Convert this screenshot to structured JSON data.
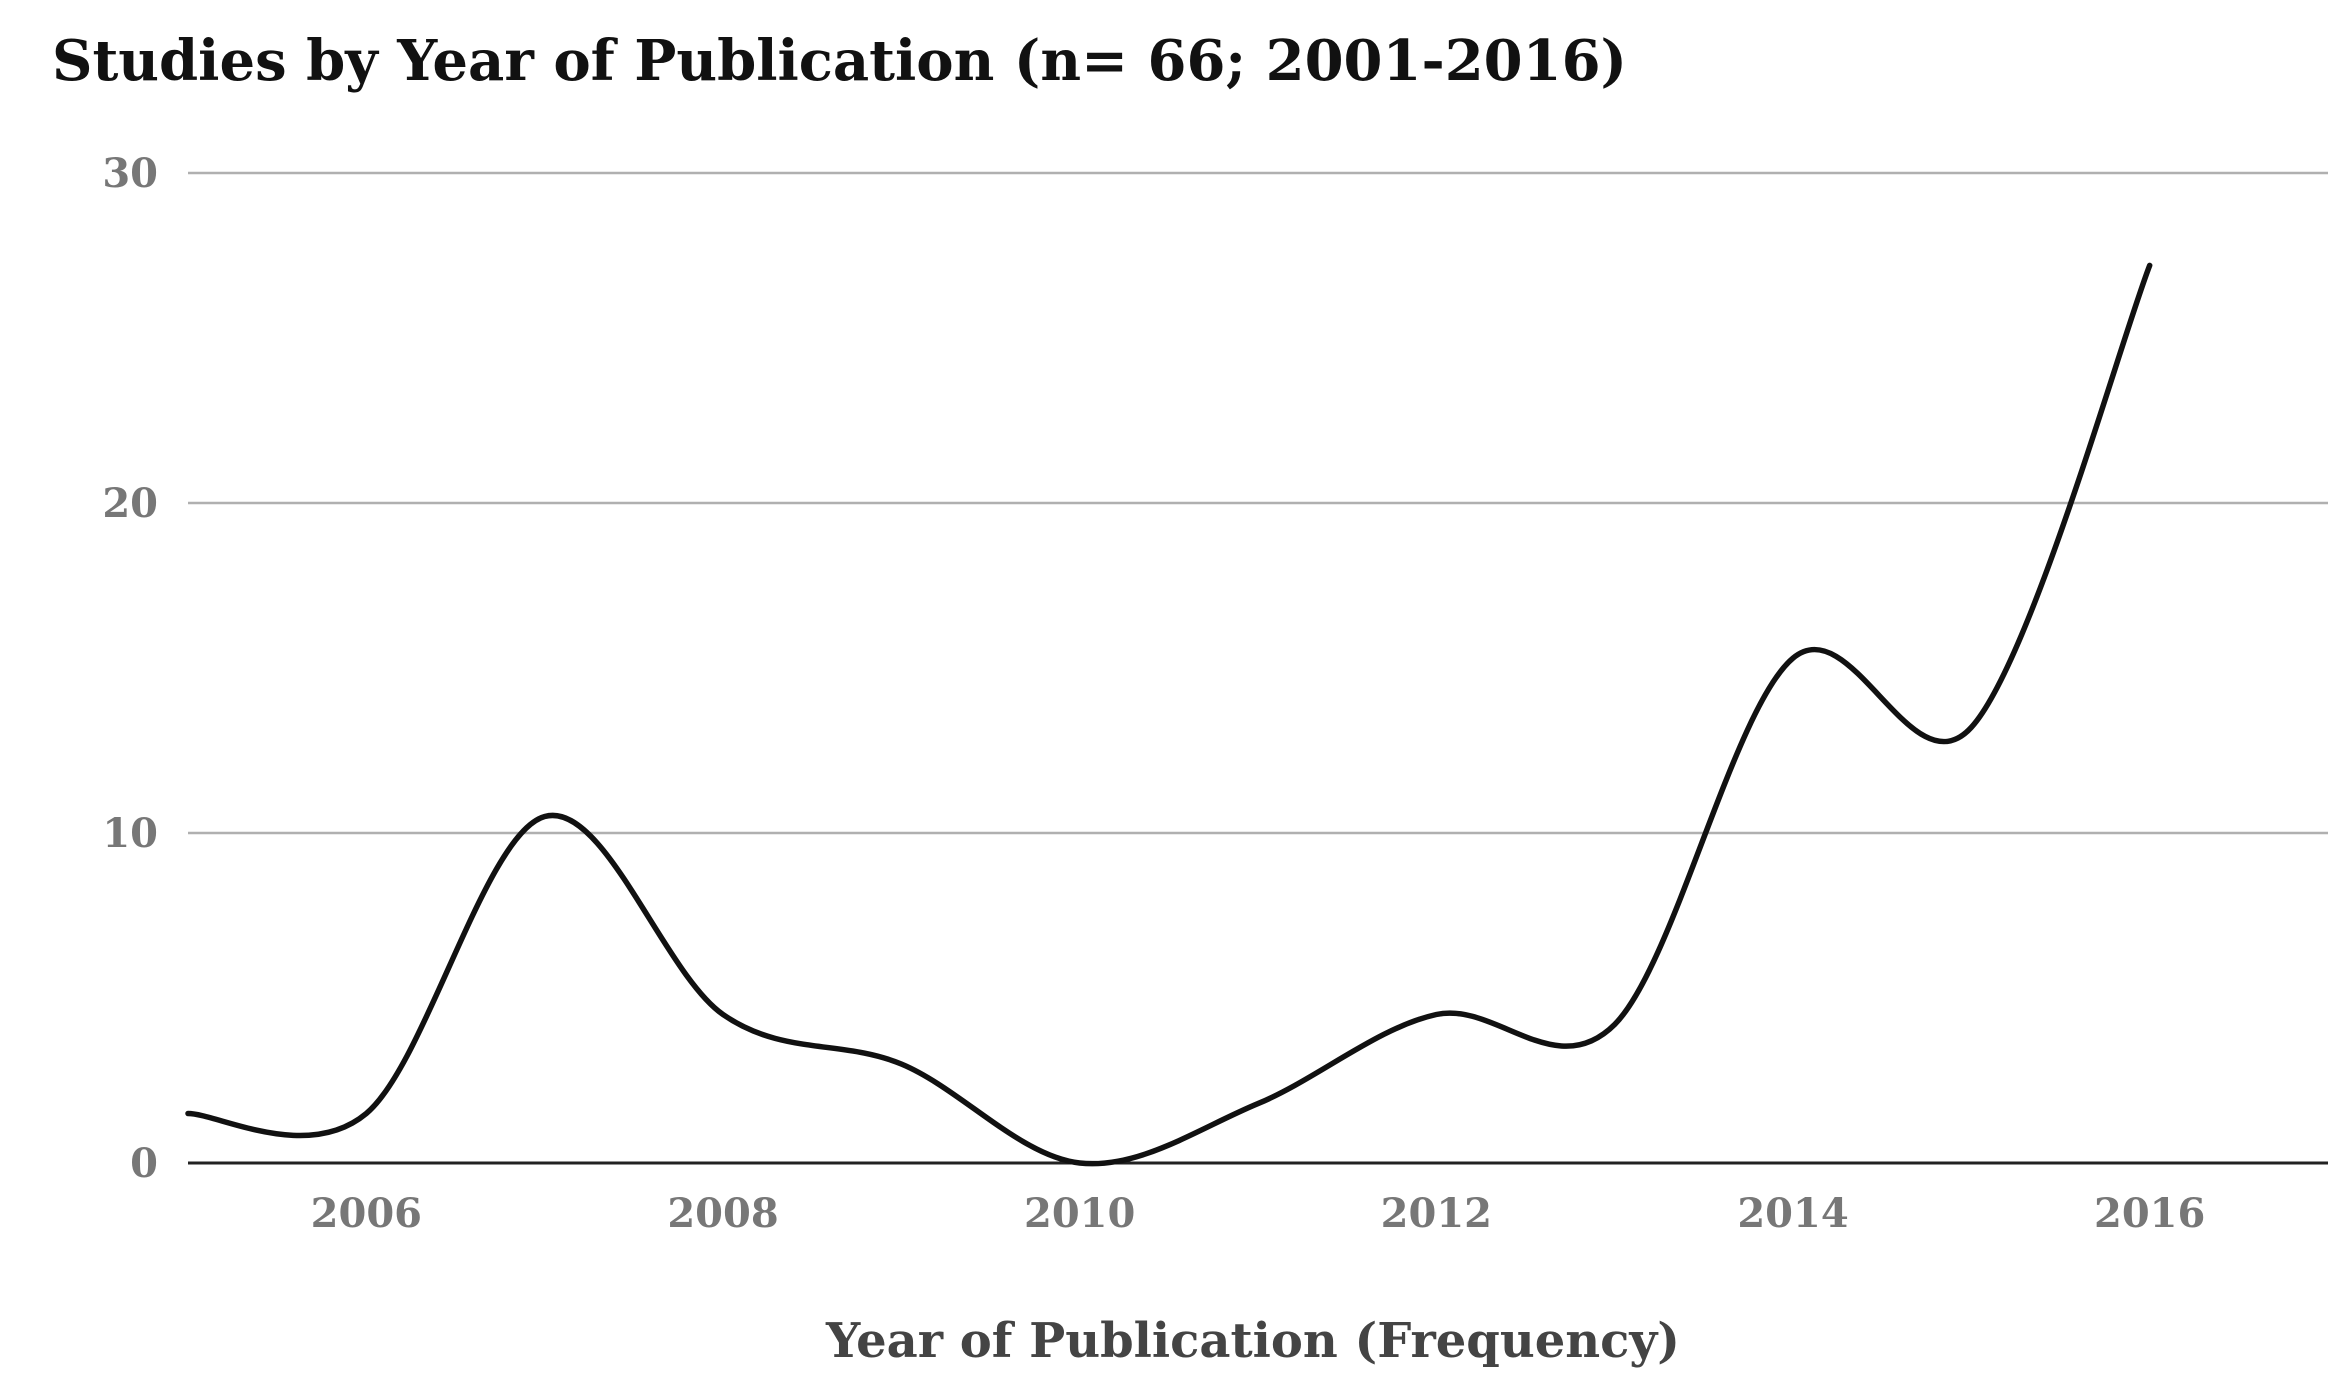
{
  "chart_data": {
    "type": "line",
    "title": "Studies by Year of Publication (n= 66; 2001-2016)",
    "xlabel": "Year of Publication (Frequency)",
    "ylabel": "",
    "x": [
      2005,
      2006,
      2007,
      2008,
      2009,
      2010,
      2011,
      2012,
      2013,
      2014,
      2015,
      2016
    ],
    "series": [
      {
        "values": [
          1.5,
          1.5,
          10.5,
          4.5,
          3,
          0,
          1.8,
          4.5,
          4.2,
          15.3,
          13.2,
          27.2
        ]
      }
    ],
    "x_ticks": [
      "2006",
      "2008",
      "2010",
      "2012",
      "2014",
      "2016"
    ],
    "y_ticks": [
      "0",
      "10",
      "20",
      "30"
    ],
    "xlim": [
      2005,
      2017
    ],
    "ylim": [
      0,
      30
    ],
    "grid": true,
    "smooth": true,
    "line_color": "#111111"
  }
}
